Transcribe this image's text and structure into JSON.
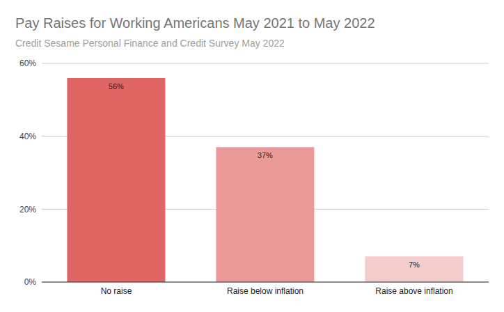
{
  "chart_data": {
    "type": "bar",
    "title": "Pay Raises for Working Americans May 2021 to May 2022",
    "subtitle": "Credit Sesame Personal Finance and Credit Survey May 2022",
    "categories": [
      "No raise",
      "Raise below inflation",
      "Raise above inflation"
    ],
    "values": [
      56,
      37,
      7
    ],
    "value_labels": [
      "56%",
      "37%",
      "7%"
    ],
    "colors": [
      "#e06666",
      "#ea9999",
      "#f4cccc"
    ],
    "ylim": [
      0,
      60
    ],
    "yticks": [
      {
        "value": 0,
        "label": "0%"
      },
      {
        "value": 20,
        "label": "20%"
      },
      {
        "value": 40,
        "label": "40%"
      },
      {
        "value": 60,
        "label": "60%"
      }
    ],
    "grid": true,
    "data_labels": true
  }
}
